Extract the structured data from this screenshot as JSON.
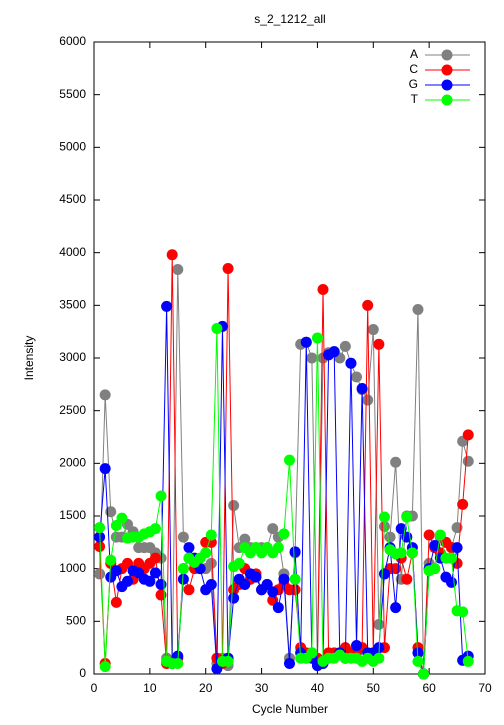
{
  "chart_data": {
    "type": "line",
    "title": "s_2_1212_all",
    "x_label": "Cycle Number",
    "y_label": "Intensity",
    "x": [
      1,
      2,
      3,
      4,
      5,
      6,
      7,
      8,
      9,
      10,
      11,
      12,
      13,
      14,
      15,
      16,
      17,
      18,
      19,
      20,
      21,
      22,
      23,
      24,
      25,
      26,
      27,
      28,
      29,
      30,
      31,
      32,
      33,
      34,
      35,
      36,
      37,
      38,
      39,
      40,
      41,
      42,
      43,
      44,
      45,
      46,
      47,
      48,
      49,
      50,
      51,
      52,
      53,
      54,
      55,
      56,
      57,
      58,
      59,
      60,
      61,
      62,
      63,
      64,
      65,
      66,
      67
    ],
    "series": [
      {
        "name": "A",
        "color": "#808080",
        "values": [
          950,
          2650,
          1540,
          1300,
          1300,
          1420,
          1350,
          1200,
          1200,
          1200,
          1150,
          1100,
          150,
          100,
          3840,
          1300,
          1100,
          1050,
          1000,
          1000,
          1050,
          100,
          150,
          80,
          1600,
          1200,
          1280,
          1200,
          1200,
          1200,
          1200,
          1380,
          1300,
          950,
          150,
          1150,
          3130,
          3150,
          3000,
          100,
          3000,
          3050,
          3060,
          3000,
          3110,
          2950,
          2820,
          2700,
          2600,
          3270,
          470,
          1400,
          1300,
          2010,
          900,
          1500,
          1500,
          3460,
          0,
          1050,
          1000,
          1300,
          1250,
          1200,
          1390,
          2210,
          2020
        ]
      },
      {
        "name": "C",
        "color": "#ff0000",
        "values": [
          1210,
          100,
          1050,
          680,
          1000,
          1050,
          900,
          1050,
          1000,
          1050,
          1100,
          750,
          100,
          3980,
          150,
          1000,
          800,
          1000,
          1000,
          1250,
          1250,
          150,
          100,
          3850,
          800,
          850,
          1000,
          900,
          950,
          800,
          850,
          700,
          800,
          850,
          800,
          800,
          250,
          200,
          200,
          150,
          3650,
          200,
          200,
          200,
          250,
          200,
          200,
          250,
          3500,
          200,
          3130,
          250,
          1000,
          1000,
          1100,
          900,
          1150,
          250,
          0,
          1320,
          1200,
          1150,
          1250,
          1200,
          1050,
          1610,
          2270
        ]
      },
      {
        "name": "G",
        "color": "#0000ff",
        "values": [
          1300,
          1950,
          920,
          980,
          830,
          880,
          980,
          960,
          900,
          880,
          960,
          850,
          3490,
          100,
          170,
          900,
          1200,
          1100,
          1000,
          800,
          850,
          50,
          3300,
          150,
          720,
          900,
          850,
          950,
          920,
          800,
          850,
          780,
          630,
          900,
          100,
          1160,
          200,
          3150,
          150,
          80,
          100,
          3030,
          3060,
          200,
          150,
          2950,
          270,
          2710,
          200,
          200,
          250,
          950,
          1200,
          630,
          1380,
          1300,
          1200,
          200,
          0,
          1000,
          1220,
          1100,
          920,
          870,
          1200,
          130,
          170
        ]
      },
      {
        "name": "T",
        "color": "#00ff00",
        "values": [
          1390,
          70,
          1080,
          1410,
          1480,
          1290,
          1300,
          1300,
          1330,
          1350,
          1380,
          1690,
          120,
          100,
          100,
          1000,
          1100,
          1060,
          1100,
          1150,
          1320,
          3280,
          120,
          120,
          1020,
          1050,
          1200,
          1150,
          1200,
          1150,
          1200,
          1150,
          1200,
          1330,
          2030,
          900,
          150,
          150,
          200,
          3190,
          120,
          150,
          150,
          180,
          150,
          150,
          150,
          120,
          150,
          120,
          150,
          1490,
          1180,
          1140,
          1150,
          1490,
          1150,
          120,
          0,
          980,
          1000,
          1320,
          1100,
          1100,
          600,
          590,
          120
        ]
      }
    ],
    "xlim": [
      0,
      70
    ],
    "xticks": [
      0,
      10,
      20,
      30,
      40,
      50,
      60,
      70
    ],
    "ylim": [
      0,
      6000
    ],
    "yticks": [
      0,
      500,
      1000,
      1500,
      2000,
      2500,
      3000,
      3500,
      4000,
      4500,
      5000,
      5500,
      6000
    ],
    "legend": "top-right"
  }
}
